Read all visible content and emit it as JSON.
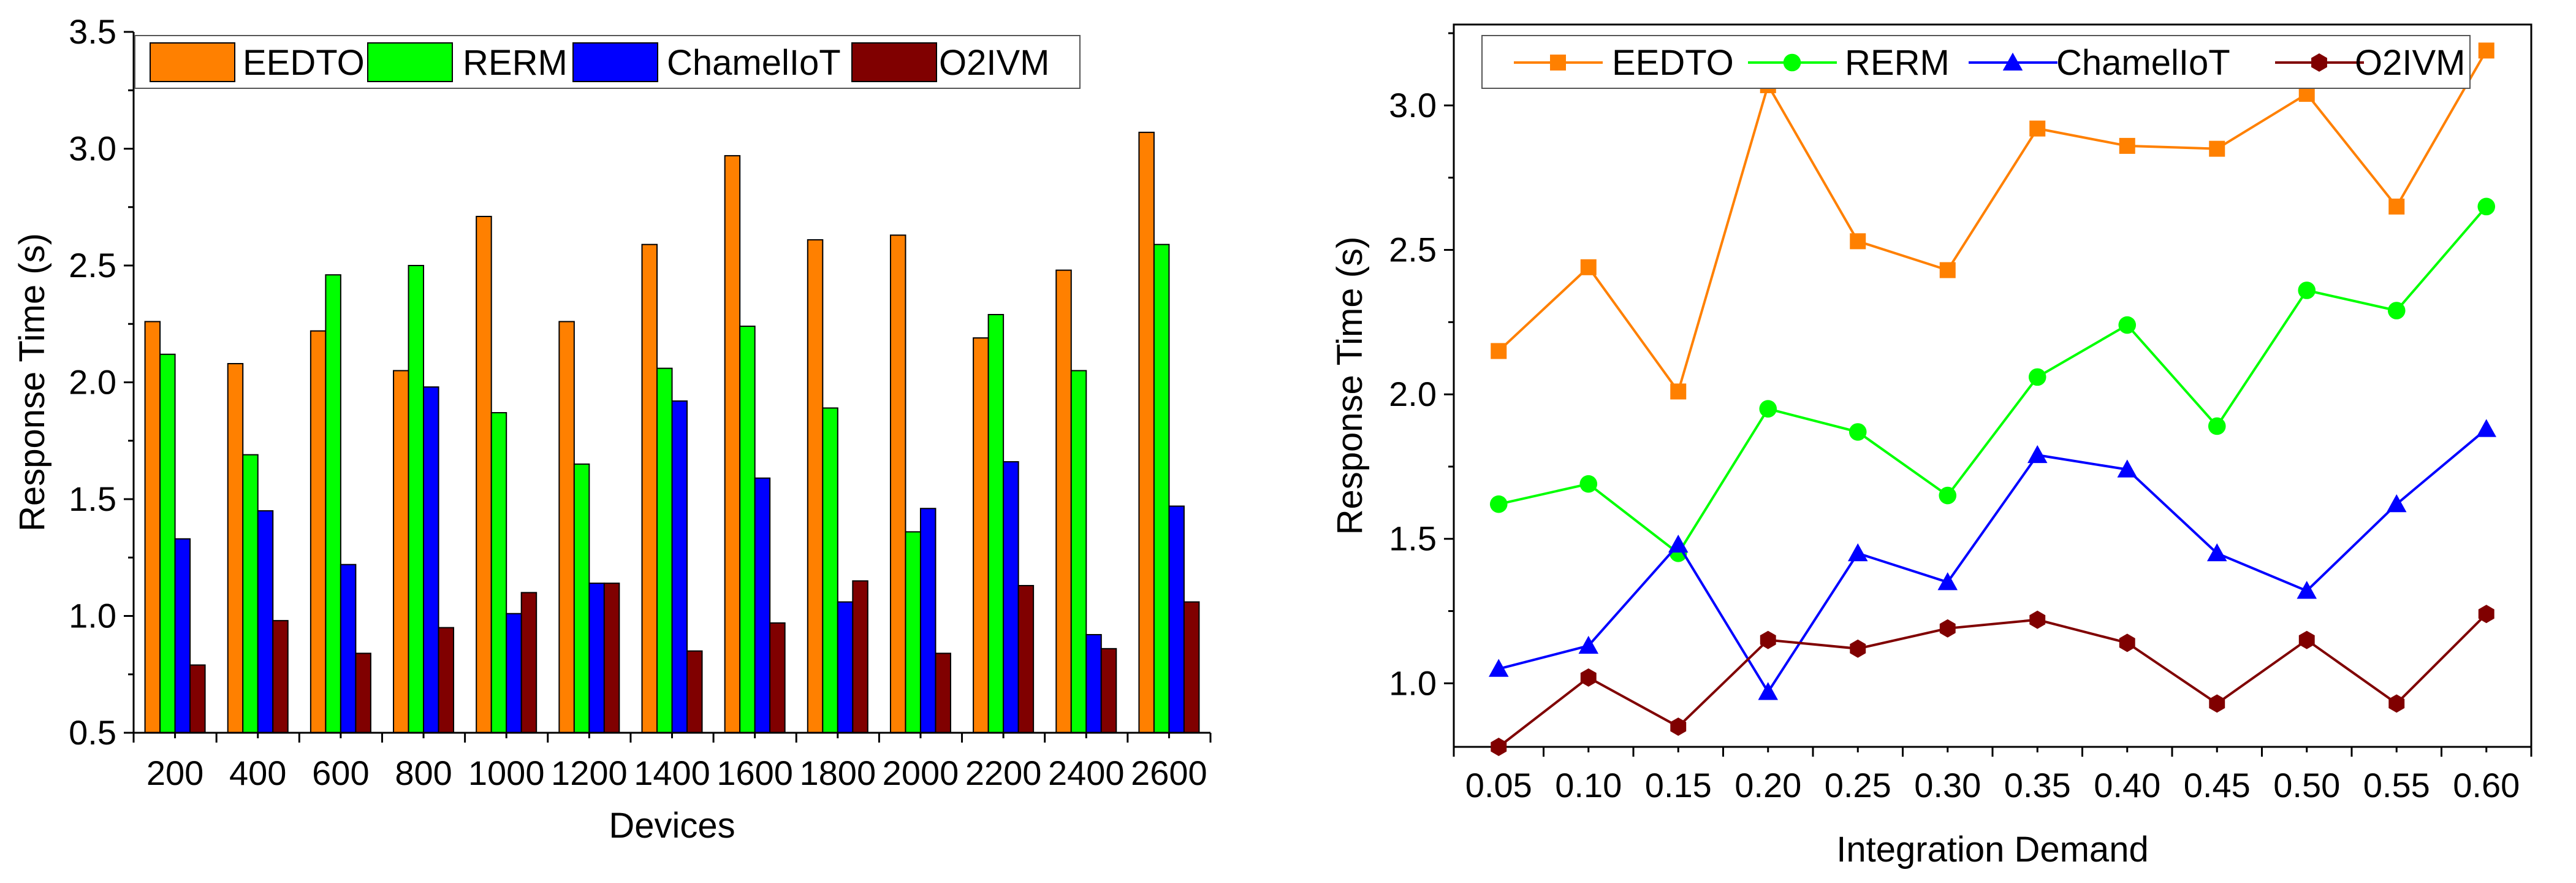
{
  "chart_data": [
    {
      "type": "bar",
      "xlabel": "Devices",
      "ylabel": "Response Time (s)",
      "ylim": [
        0.5,
        3.5
      ],
      "yticks": [
        "0.5",
        "1.0",
        "1.5",
        "2.0",
        "2.5",
        "3.0",
        "3.5"
      ],
      "categories": [
        "200",
        "400",
        "600",
        "800",
        "1000",
        "1200",
        "1400",
        "1600",
        "1800",
        "2000",
        "2200",
        "2400",
        "2600"
      ],
      "legend_position": "top",
      "series": [
        {
          "name": "EEDTO",
          "color": "#ff8000",
          "values": [
            2.26,
            2.08,
            2.22,
            2.05,
            2.71,
            2.26,
            2.59,
            2.97,
            2.61,
            2.63,
            2.19,
            2.48,
            3.07
          ]
        },
        {
          "name": "RERM",
          "color": "#00ff00",
          "values": [
            2.12,
            1.69,
            2.46,
            2.5,
            1.87,
            1.65,
            2.06,
            2.24,
            1.89,
            1.36,
            2.29,
            2.05,
            2.59
          ]
        },
        {
          "name": "ChamelIoT",
          "color": "#0000ff",
          "values": [
            1.33,
            1.45,
            1.22,
            1.98,
            1.01,
            1.14,
            1.92,
            1.59,
            1.06,
            1.46,
            1.66,
            0.92,
            1.47
          ]
        },
        {
          "name": "O2IVM",
          "color": "#800000",
          "values": [
            0.79,
            0.98,
            0.84,
            0.95,
            1.1,
            1.14,
            0.85,
            0.97,
            1.15,
            0.84,
            1.13,
            0.86,
            1.06
          ]
        }
      ]
    },
    {
      "type": "line",
      "xlabel": "Integration Demand",
      "ylabel": "Response Time (s)",
      "ylim": [
        0.78,
        3.28
      ],
      "yticks": [
        "1.0",
        "1.5",
        "2.0",
        "2.5",
        "3.0"
      ],
      "ytick_values": [
        1.0,
        1.5,
        2.0,
        2.5,
        3.0
      ],
      "x": [
        "0.05",
        "0.10",
        "0.15",
        "0.20",
        "0.25",
        "0.30",
        "0.35",
        "0.40",
        "0.45",
        "0.50",
        "0.55",
        "0.60"
      ],
      "legend_position": "top",
      "series": [
        {
          "name": "EEDTO",
          "color": "#ff8000",
          "marker": "square",
          "values": [
            2.15,
            2.44,
            2.01,
            3.07,
            2.53,
            2.43,
            2.92,
            2.86,
            2.85,
            3.04,
            2.65,
            3.19
          ]
        },
        {
          "name": "RERM",
          "color": "#00ff00",
          "marker": "circle",
          "values": [
            1.62,
            1.69,
            1.45,
            1.95,
            1.87,
            1.65,
            2.06,
            2.24,
            1.89,
            2.36,
            2.29,
            2.65
          ]
        },
        {
          "name": "ChamelIoT",
          "color": "#0000ff",
          "marker": "triangle",
          "values": [
            1.05,
            1.13,
            1.48,
            0.97,
            1.45,
            1.35,
            1.79,
            1.74,
            1.45,
            1.32,
            1.62,
            1.88
          ]
        },
        {
          "name": "O2IVM",
          "color": "#800000",
          "marker": "hexagon",
          "values": [
            0.78,
            1.02,
            0.85,
            1.15,
            1.12,
            1.19,
            1.22,
            1.14,
            0.93,
            1.15,
            0.93,
            1.24
          ]
        }
      ]
    }
  ]
}
